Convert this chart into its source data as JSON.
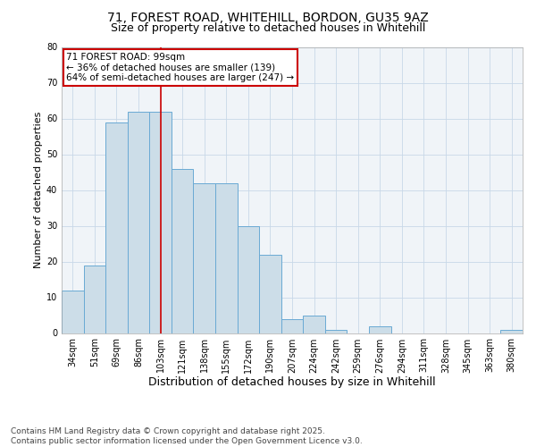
{
  "title1": "71, FOREST ROAD, WHITEHILL, BORDON, GU35 9AZ",
  "title2": "Size of property relative to detached houses in Whitehill",
  "xlabel": "Distribution of detached houses by size in Whitehill",
  "ylabel": "Number of detached properties",
  "categories": [
    "34sqm",
    "51sqm",
    "69sqm",
    "86sqm",
    "103sqm",
    "121sqm",
    "138sqm",
    "155sqm",
    "172sqm",
    "190sqm",
    "207sqm",
    "224sqm",
    "242sqm",
    "259sqm",
    "276sqm",
    "294sqm",
    "311sqm",
    "328sqm",
    "345sqm",
    "363sqm",
    "380sqm"
  ],
  "values": [
    12,
    19,
    59,
    62,
    62,
    46,
    42,
    42,
    30,
    22,
    4,
    5,
    1,
    0,
    2,
    0,
    0,
    0,
    0,
    0,
    1
  ],
  "bar_color": "#ccdde8",
  "bar_edge_color": "#6aaad4",
  "red_line_index": 4,
  "annotation_text": "71 FOREST ROAD: 99sqm\n← 36% of detached houses are smaller (139)\n64% of semi-detached houses are larger (247) →",
  "annotation_box_color": "#ffffff",
  "annotation_box_edge_color": "#cc0000",
  "footer1": "Contains HM Land Registry data © Crown copyright and database right 2025.",
  "footer2": "Contains public sector information licensed under the Open Government Licence v3.0.",
  "ylim": [
    0,
    80
  ],
  "yticks": [
    0,
    10,
    20,
    30,
    40,
    50,
    60,
    70,
    80
  ],
  "title1_fontsize": 10,
  "title2_fontsize": 9,
  "xlabel_fontsize": 9,
  "ylabel_fontsize": 8,
  "tick_fontsize": 7,
  "annotation_fontsize": 7.5,
  "footer_fontsize": 6.5
}
